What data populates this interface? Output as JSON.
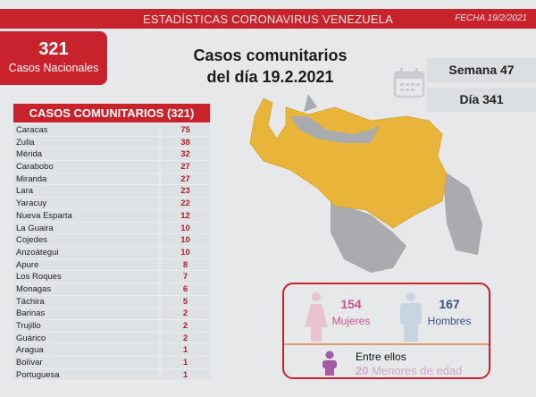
{
  "header": {
    "title": "ESTADÍSTICAS CORONAVIRUS VENEZUELA",
    "date": "FECHA 19/2/2021"
  },
  "national": {
    "count": "321",
    "label": "Casos Nacionales"
  },
  "title": {
    "line1": "Casos comunitarios",
    "line2": "del día 19.2.2021"
  },
  "week": "Semana 47",
  "day": "Día 341",
  "table": {
    "header": "CASOS COMUNITARIOS (321)",
    "rows": [
      {
        "name": "Caracas",
        "value": "75"
      },
      {
        "name": "Zulia",
        "value": "38"
      },
      {
        "name": "Mérida",
        "value": "32"
      },
      {
        "name": "Carabobo",
        "value": "27"
      },
      {
        "name": "Miranda",
        "value": "27"
      },
      {
        "name": "Lara",
        "value": "23"
      },
      {
        "name": "Yaracuy",
        "value": "22"
      },
      {
        "name": "Nueva Esparta",
        "value": "12"
      },
      {
        "name": "La Guaira",
        "value": "10"
      },
      {
        "name": "Cojedes",
        "value": "10"
      },
      {
        "name": "Anzoátegui",
        "value": "10"
      },
      {
        "name": "Apure",
        "value": "8"
      },
      {
        "name": "Los Roques",
        "value": "7"
      },
      {
        "name": "Monagas",
        "value": "6"
      },
      {
        "name": "Táchira",
        "value": "5"
      },
      {
        "name": "Barinas",
        "value": "2"
      },
      {
        "name": "Trujillo",
        "value": "2"
      },
      {
        "name": "Guárico",
        "value": "2"
      },
      {
        "name": "Aragua",
        "value": "1"
      },
      {
        "name": "Bolívar",
        "value": "1"
      },
      {
        "name": "Portuguesa",
        "value": "1"
      }
    ]
  },
  "gender": {
    "women": {
      "count": "154",
      "label": "Mujeres",
      "color": "#c9548f"
    },
    "men": {
      "count": "167",
      "label": "Hombres",
      "color": "#3d4f8a"
    },
    "minors_intro": "Entre ellos",
    "minors_count": "20",
    "minors_label": "Menores de edad"
  },
  "colors": {
    "accent": "#c8232c",
    "map_affected": "#e8b53a",
    "map_unaffected": "#a9abae"
  }
}
